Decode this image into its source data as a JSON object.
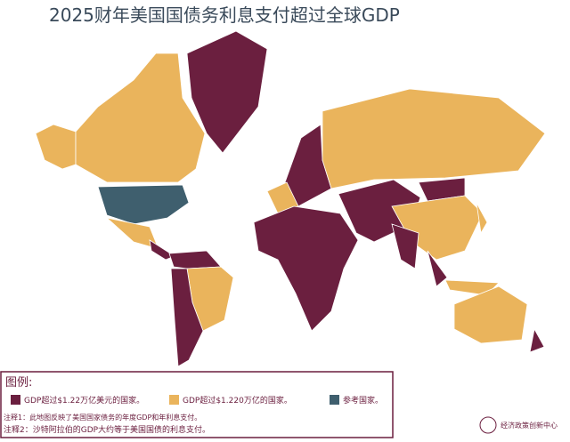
{
  "title": "2025财年美国国债务利息支付超过全球GDP",
  "legend": {
    "title": "图例:",
    "items": [
      {
        "label": "GDP超过$1.22万亿美元的国家。",
        "color": "#6b1f3f"
      },
      {
        "label": "GDP超过$1.220万亿的国家。",
        "color": "#eab45c"
      },
      {
        "label": "参考国家。",
        "color": "#3f5f6e"
      }
    ]
  },
  "notes": [
    "注释1：此地图反映了美国国家债务的年度GDP和年利息支付。",
    "注释2：沙特阿拉伯的GDP大约等于美国国债的利息支付。"
  ],
  "logo": {
    "text": "经济政策创新中心"
  }
}
